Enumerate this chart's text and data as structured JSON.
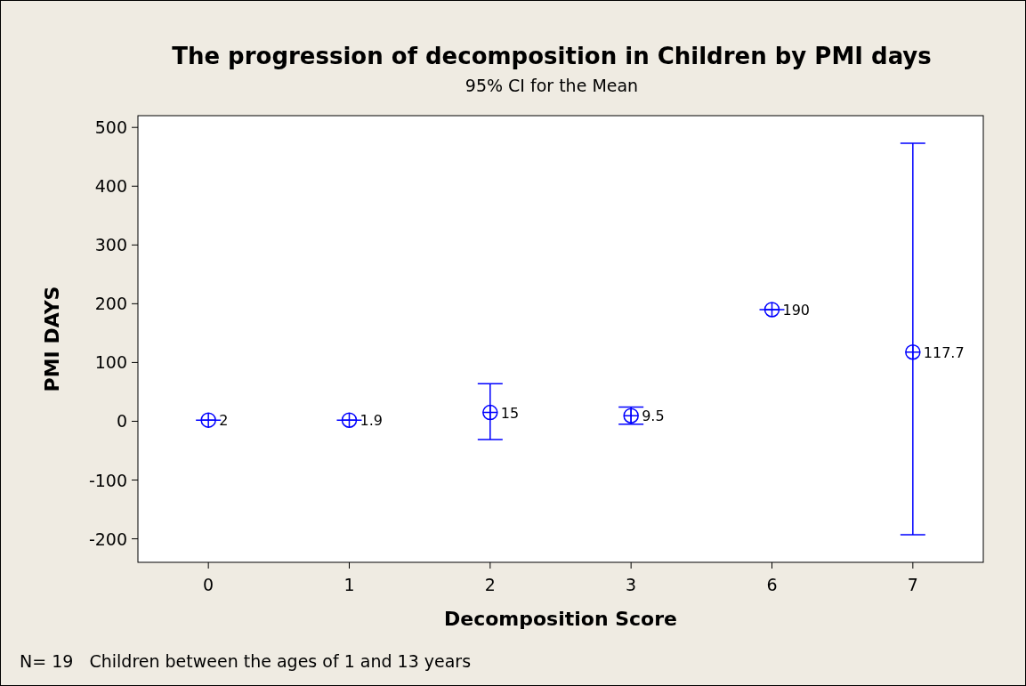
{
  "chart_data": {
    "type": "scatter",
    "title": "The progression of decomposition in Children by PMI days",
    "subtitle": "95% CI for the Mean",
    "xlabel": "Decomposition Score",
    "ylabel": "PMI DAYS",
    "categories": [
      "0",
      "1",
      "2",
      "3",
      "6",
      "7"
    ],
    "series": [
      {
        "color": "#0000ff",
        "values": [
          2,
          1.9,
          15,
          9.5,
          190,
          117.7
        ],
        "errors": [
          [
            2,
            2
          ],
          [
            1.9,
            1.9
          ],
          [
            -31,
            64
          ],
          [
            -5,
            24
          ],
          [
            190,
            190
          ],
          [
            -193,
            473
          ]
        ]
      }
    ],
    "ylim": [
      -240,
      520
    ],
    "yticks": [
      -200,
      -100,
      0,
      100,
      200,
      300,
      400,
      500
    ],
    "marker": "circle",
    "data_labels": true,
    "grid": false,
    "annotations": [
      "N= 19   Children between the ages of 1 and 13 years"
    ]
  }
}
